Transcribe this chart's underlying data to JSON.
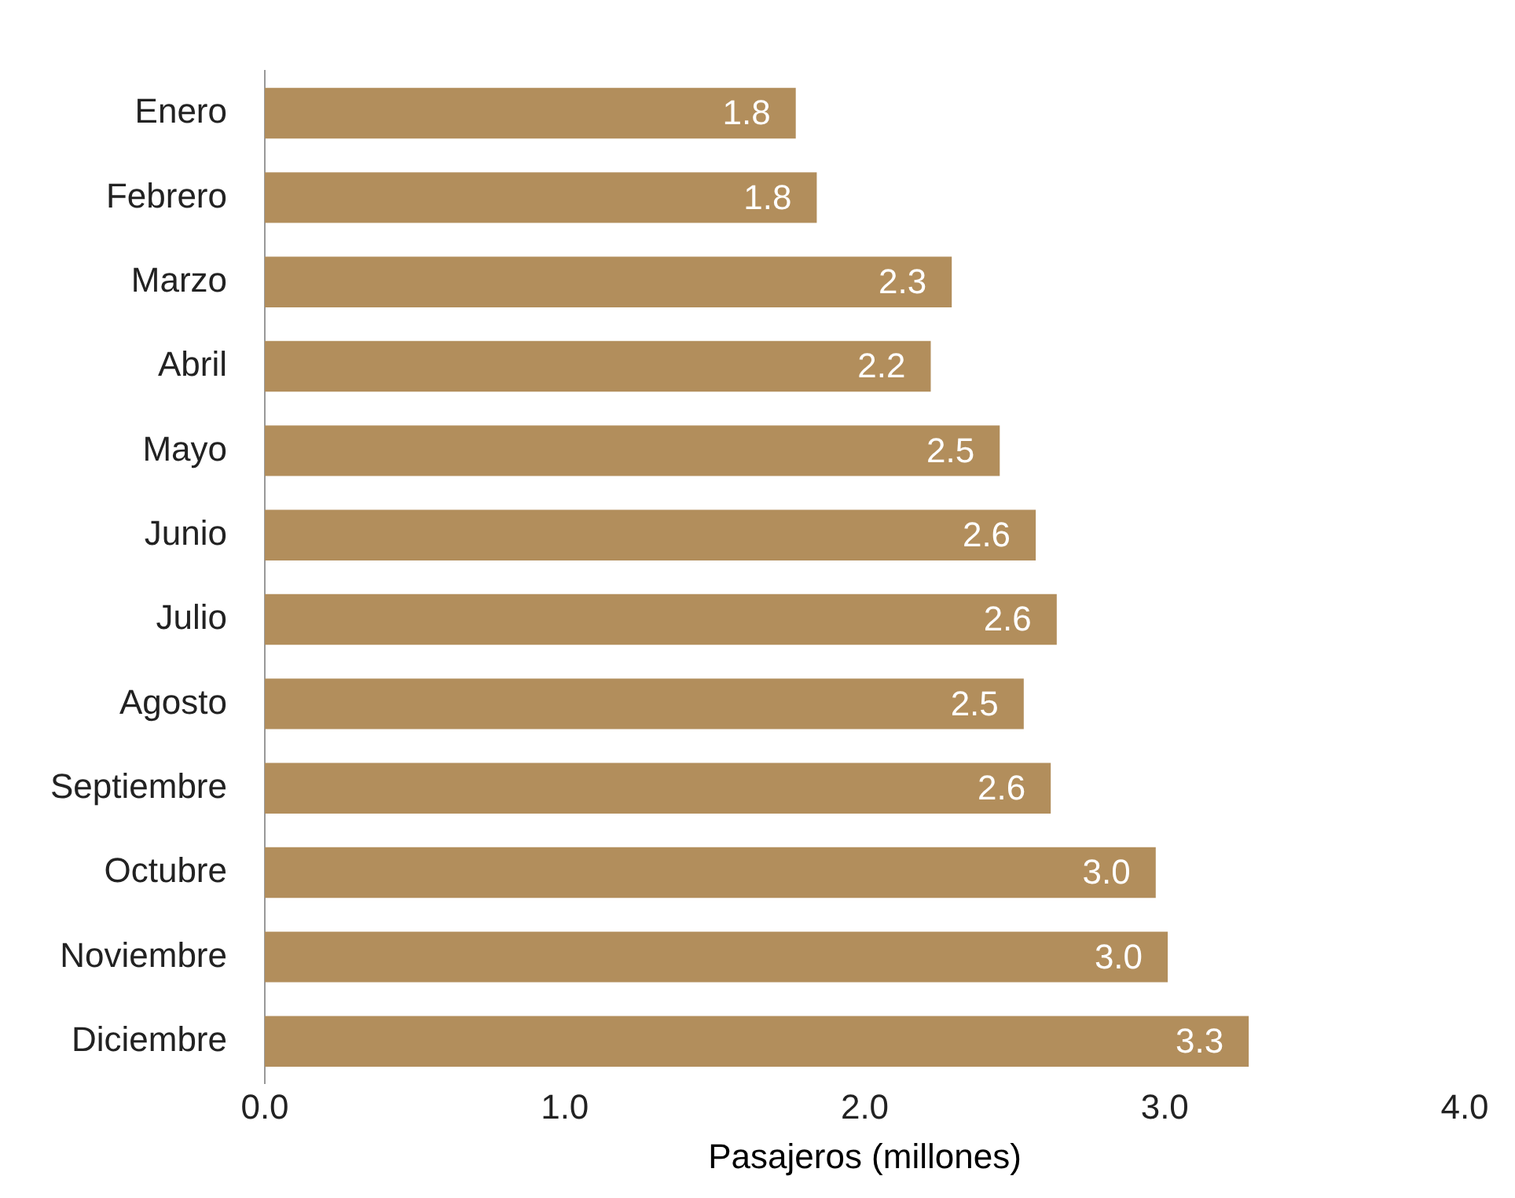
{
  "chart_data": {
    "type": "bar",
    "orientation": "horizontal",
    "xlabel": "Pasajeros (millones)",
    "categories": [
      "Enero",
      "Febrero",
      "Marzo",
      "Abril",
      "Mayo",
      "Junio",
      "Julio",
      "Agosto",
      "Septiembre",
      "Octubre",
      "Noviembre",
      "Diciembre"
    ],
    "values": [
      1.77,
      1.84,
      2.29,
      2.22,
      2.45,
      2.57,
      2.64,
      2.53,
      2.62,
      2.97,
      3.01,
      3.28
    ],
    "value_labels": [
      "1.8",
      "1.8",
      "2.3",
      "2.2",
      "2.5",
      "2.6",
      "2.6",
      "2.5",
      "2.6",
      "3.0",
      "3.0",
      "3.3"
    ],
    "color": "#b28e5c",
    "xlim": [
      0,
      4
    ],
    "xticks": [
      {
        "value": 0,
        "label": "0.0"
      },
      {
        "value": 1,
        "label": "1.0"
      },
      {
        "value": 2,
        "label": "2.0"
      },
      {
        "value": 3,
        "label": "3.0"
      },
      {
        "value": 4,
        "label": "4.0"
      }
    ],
    "grid": false,
    "legend": false
  }
}
